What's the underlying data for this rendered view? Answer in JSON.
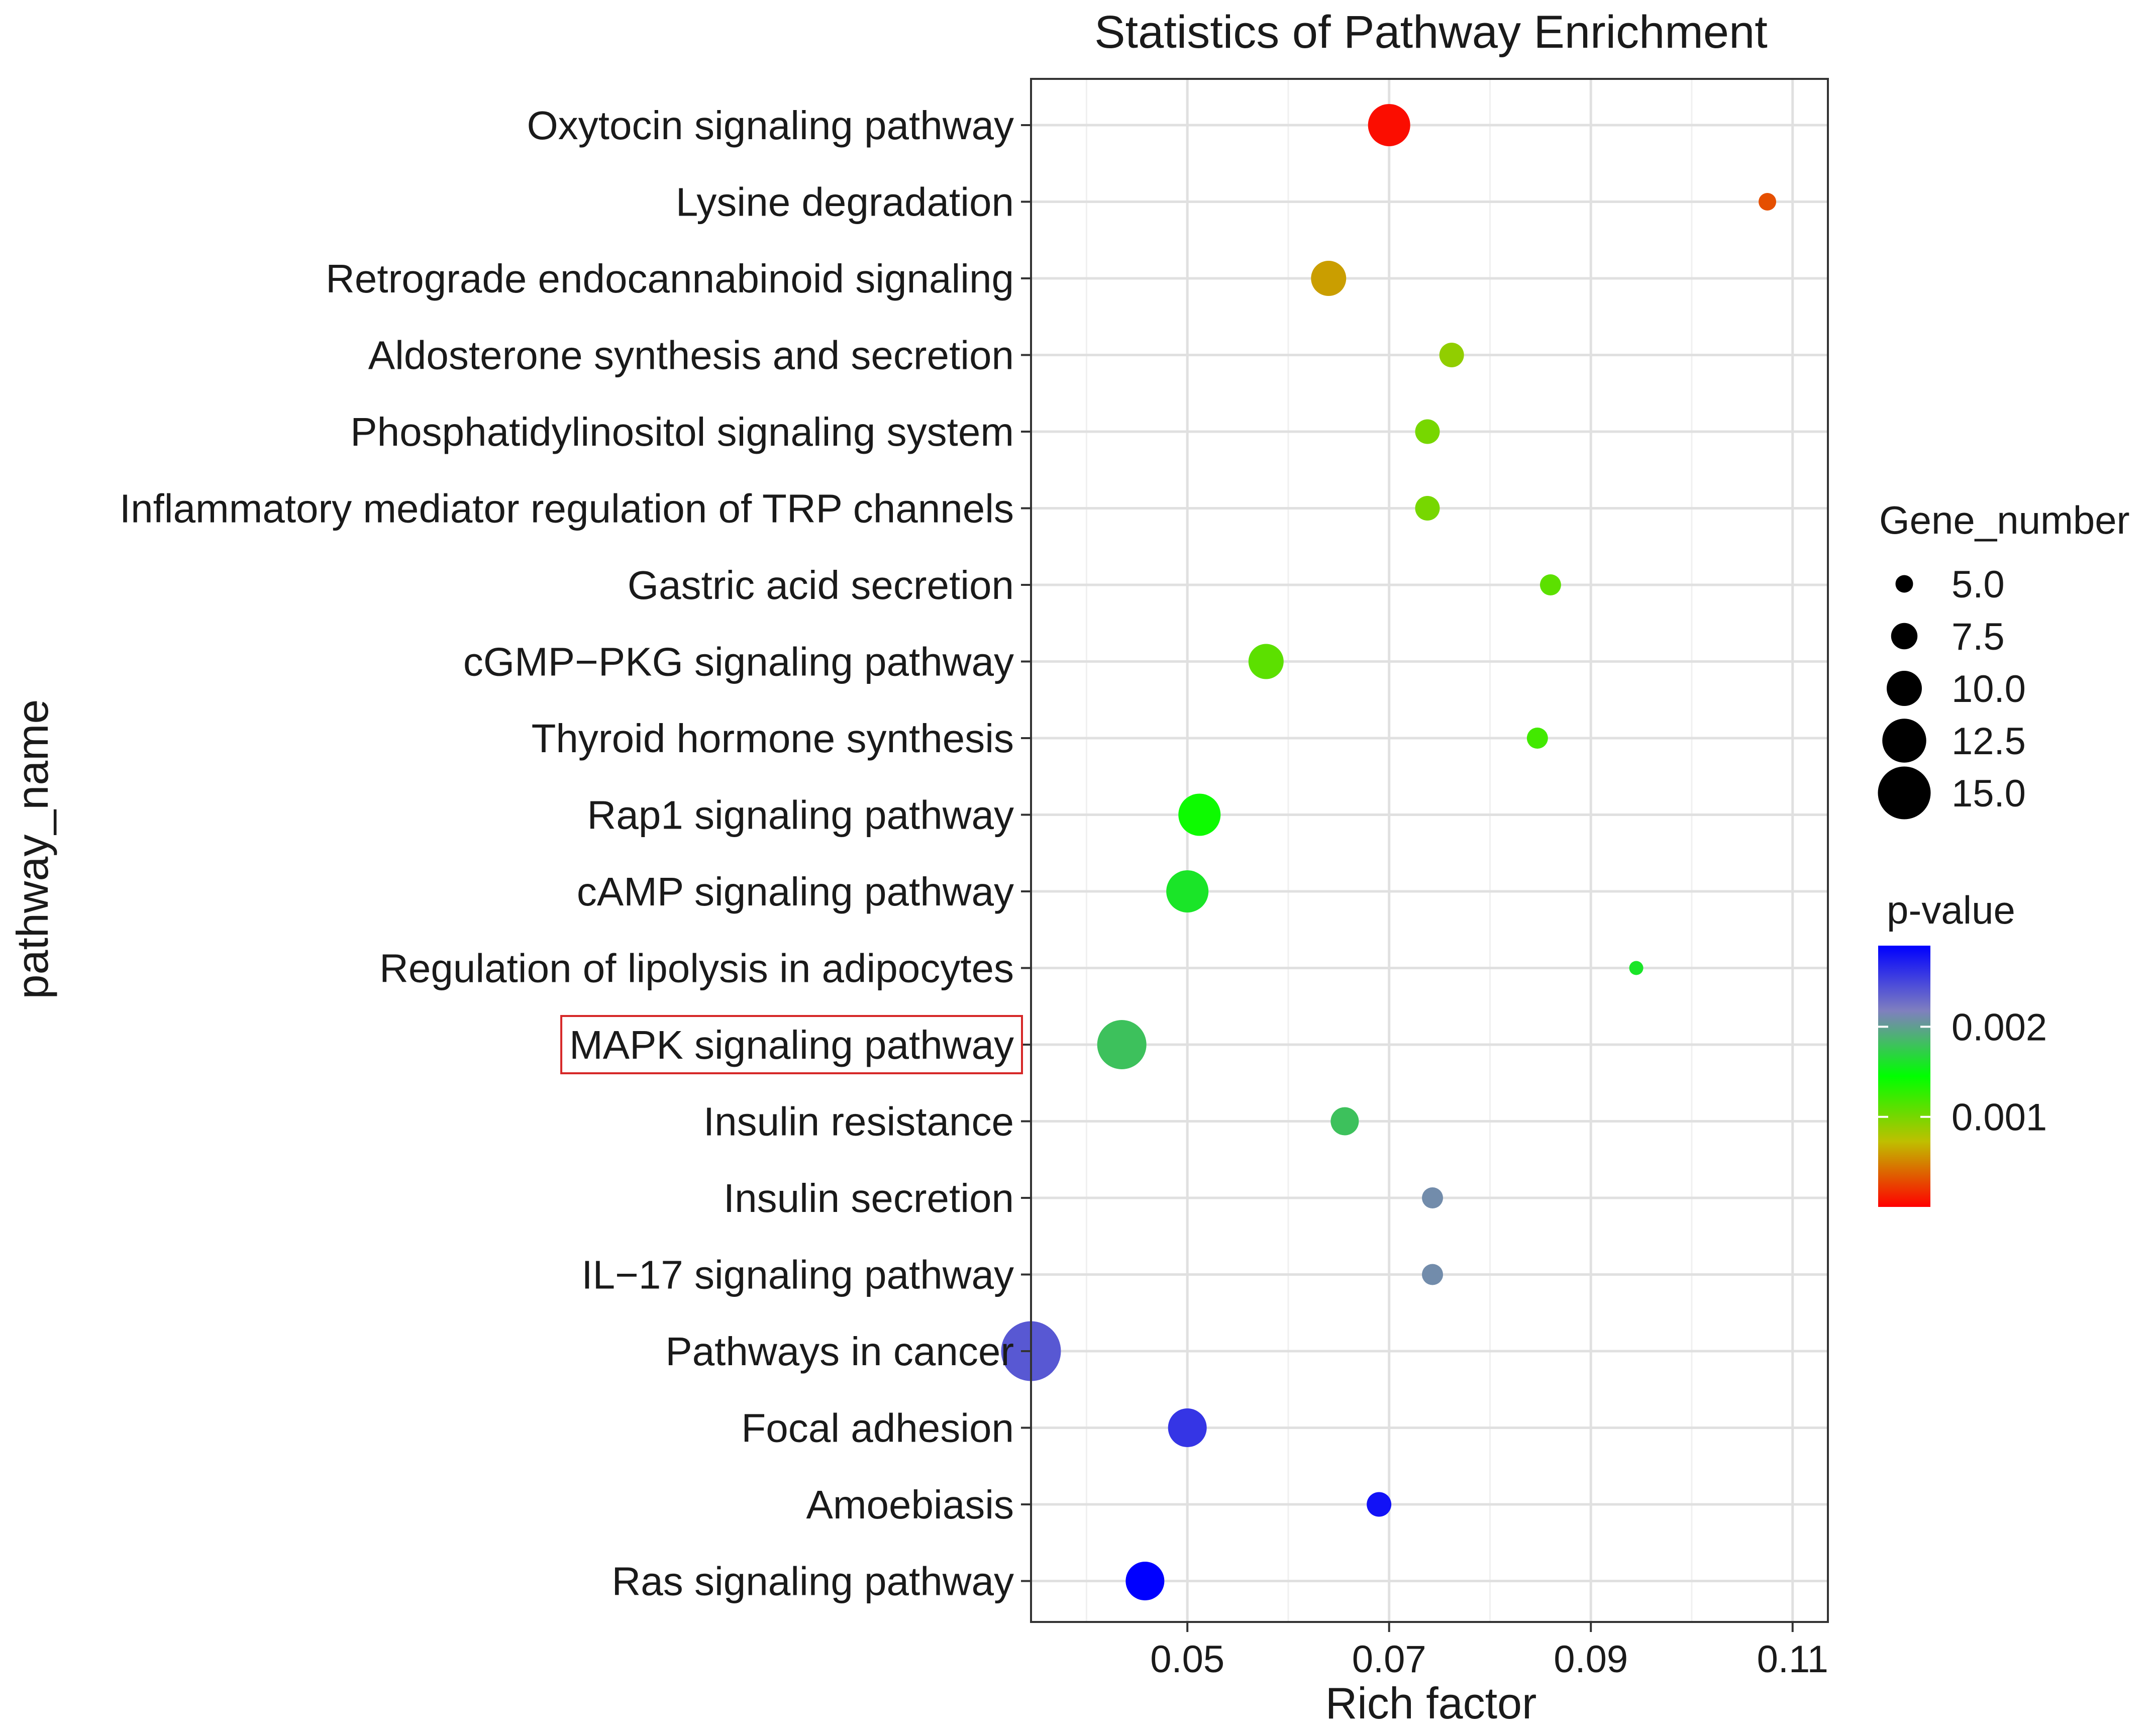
{
  "chart_data": {
    "type": "scatter",
    "title": "Statistics of Pathway Enrichment",
    "xlabel": "Rich factor",
    "ylabel": "pathway_name",
    "xlim": [
      0.0345,
      0.1135
    ],
    "xticks": [
      {
        "value": 0.05,
        "label": "0.05"
      },
      {
        "value": 0.07,
        "label": "0.07"
      },
      {
        "value": 0.09,
        "label": "0.09"
      },
      {
        "value": 0.11,
        "label": "0.11"
      }
    ],
    "grid": true,
    "highlighted_category": "MAPK signaling pathway",
    "points": [
      {
        "pathway": "Oxytocin signaling pathway",
        "rich_factor": 0.07,
        "gene_number": 12,
        "p_value": 5e-05
      },
      {
        "pathway": "Lysine degradation",
        "rich_factor": 0.1075,
        "gene_number": 5,
        "p_value": 0.0003
      },
      {
        "pathway": "Retrograde endocannabinoid signaling",
        "rich_factor": 0.064,
        "gene_number": 10,
        "p_value": 0.0006
      },
      {
        "pathway": "Aldosterone synthesis and secretion",
        "rich_factor": 0.0762,
        "gene_number": 7,
        "p_value": 0.0009
      },
      {
        "pathway": "Phosphatidylinositol signaling system",
        "rich_factor": 0.0738,
        "gene_number": 7,
        "p_value": 0.001
      },
      {
        "pathway": "Inflammatory mediator regulation of TRP channels",
        "rich_factor": 0.0738,
        "gene_number": 7,
        "p_value": 0.001
      },
      {
        "pathway": "Gastric acid secretion",
        "rich_factor": 0.086,
        "gene_number": 6,
        "p_value": 0.0011
      },
      {
        "pathway": "cGMP-PKG signaling pathway",
        "rich_factor": 0.0578,
        "gene_number": 10,
        "p_value": 0.0011
      },
      {
        "pathway": "Thyroid hormone synthesis",
        "rich_factor": 0.0847,
        "gene_number": 6,
        "p_value": 0.0012
      },
      {
        "pathway": "Rap1 signaling pathway",
        "rich_factor": 0.0512,
        "gene_number": 12,
        "p_value": 0.0014
      },
      {
        "pathway": "cAMP signaling pathway",
        "rich_factor": 0.05,
        "gene_number": 12,
        "p_value": 0.0016
      },
      {
        "pathway": "Regulation of lipolysis in adipocytes",
        "rich_factor": 0.0945,
        "gene_number": 4,
        "p_value": 0.0016
      },
      {
        "pathway": "MAPK signaling pathway",
        "rich_factor": 0.0435,
        "gene_number": 14,
        "p_value": 0.0018
      },
      {
        "pathway": "Insulin resistance",
        "rich_factor": 0.0656,
        "gene_number": 8,
        "p_value": 0.0018
      },
      {
        "pathway": "Insulin secretion",
        "rich_factor": 0.0743,
        "gene_number": 6,
        "p_value": 0.0021
      },
      {
        "pathway": "IL-17 signaling pathway",
        "rich_factor": 0.0743,
        "gene_number": 6,
        "p_value": 0.0021
      },
      {
        "pathway": "Pathways in cancer",
        "rich_factor": 0.0345,
        "gene_number": 17,
        "p_value": 0.0024
      },
      {
        "pathway": "Focal adhesion",
        "rich_factor": 0.05,
        "gene_number": 11,
        "p_value": 0.0026
      },
      {
        "pathway": "Amoebiasis",
        "rich_factor": 0.069,
        "gene_number": 7,
        "p_value": 0.0028
      },
      {
        "pathway": "Ras signaling pathway",
        "rich_factor": 0.0458,
        "gene_number": 11,
        "p_value": 0.0029
      }
    ],
    "legend": {
      "size_title": "Gene_number",
      "size_entries": [
        {
          "value": 5.0,
          "label": "5.0"
        },
        {
          "value": 7.5,
          "label": "7.5"
        },
        {
          "value": 10.0,
          "label": "10.0"
        },
        {
          "value": 12.5,
          "label": "12.5"
        },
        {
          "value": 15.0,
          "label": "15.0"
        }
      ],
      "color_title": "p-value",
      "color_range": [
        0,
        0.0029
      ],
      "color_ticks": [
        {
          "value": 0.002,
          "label": "0.002"
        },
        {
          "value": 0.001,
          "label": "0.001"
        }
      ],
      "color_stops": [
        "#ff0000",
        "#bfbf00",
        "#00ff00",
        "#7f7fbf",
        "#0000ff"
      ],
      "placement": "right"
    }
  }
}
